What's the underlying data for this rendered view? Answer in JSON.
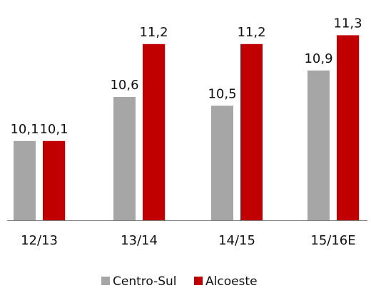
{
  "chart_data": {
    "type": "bar",
    "title": "",
    "xlabel": "",
    "ylabel": "",
    "categories": [
      "12/13",
      "13/14",
      "14/15",
      "15/16E"
    ],
    "series": [
      {
        "name": "Centro-Sul",
        "color": "#a6a6a6",
        "values": [
          10.1,
          10.6,
          10.5,
          10.9
        ],
        "labels": [
          "10,1",
          "10,6",
          "10,5",
          "10,9"
        ]
      },
      {
        "name": "Alcoeste",
        "color": "#c00000",
        "values": [
          10.1,
          11.2,
          11.2,
          11.3
        ],
        "labels": [
          "10,1",
          "11,2",
          "11,2",
          "11,3"
        ]
      }
    ],
    "ylim": [
      9.2,
      11.7
    ],
    "grid": false,
    "y_axis_visible": false,
    "legend_position": "bottom-center",
    "axis_line_color": "#808080"
  }
}
